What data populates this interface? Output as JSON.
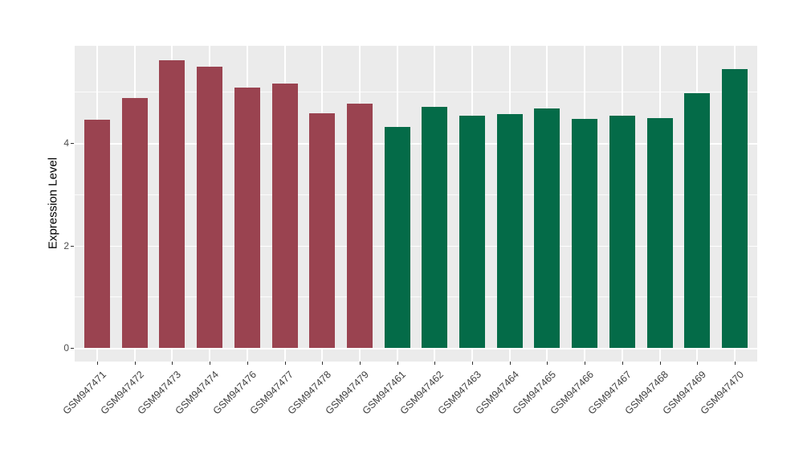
{
  "chart_data": {
    "type": "bar",
    "title": "",
    "xlabel": "",
    "ylabel": "Expression Level",
    "yticks_major": [
      0,
      2,
      4
    ],
    "yticks_minor": [
      1,
      3,
      5
    ],
    "ylim": [
      -0.27,
      5.9
    ],
    "grid": true,
    "legend": "none",
    "panel_bg": "#ebebeb",
    "grid_color": "#ffffff",
    "tick_label_color": "#4d4d4d",
    "categories": [
      "GSM947471",
      "GSM947472",
      "GSM947473",
      "GSM947474",
      "GSM947476",
      "GSM947477",
      "GSM947478",
      "GSM947479",
      "GSM947461",
      "GSM947462",
      "GSM947463",
      "GSM947464",
      "GSM947465",
      "GSM947466",
      "GSM947467",
      "GSM947468",
      "GSM947469",
      "GSM947470"
    ],
    "values": [
      4.45,
      4.88,
      5.62,
      5.49,
      5.08,
      5.16,
      4.58,
      4.77,
      4.31,
      4.71,
      4.53,
      4.57,
      4.67,
      4.47,
      4.54,
      4.49,
      4.97,
      5.44
    ],
    "groups": [
      "group1",
      "group1",
      "group1",
      "group1",
      "group1",
      "group1",
      "group1",
      "group1",
      "group2",
      "group2",
      "group2",
      "group2",
      "group2",
      "group2",
      "group2",
      "group2",
      "group2",
      "group2"
    ],
    "group_colors": {
      "group1": "#9a4350",
      "group2": "#046b48"
    }
  }
}
